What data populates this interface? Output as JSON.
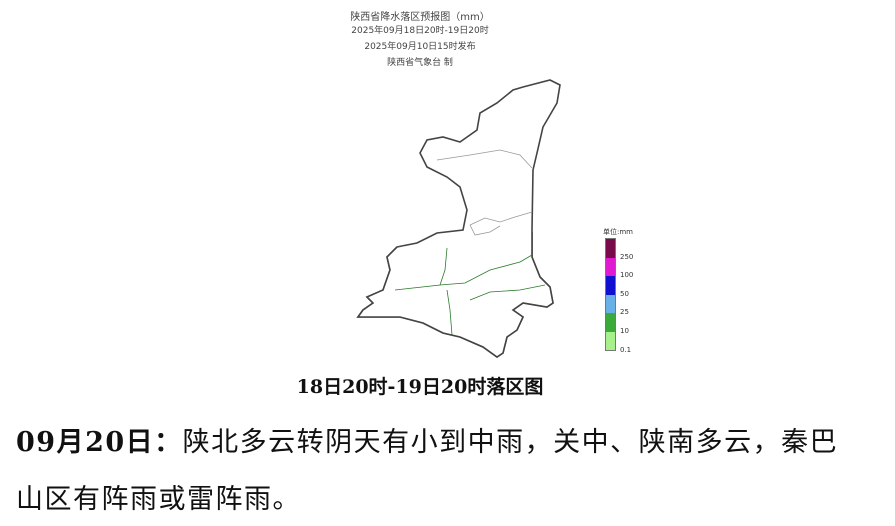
{
  "map_header": {
    "title": "陕西省降水落区预报图（mm）",
    "period": "2025年09月18日20时-19日20时",
    "issued": "2025年09月10日15时发布",
    "issuer": "陕西省气象台 制"
  },
  "legend": {
    "title": "单位:mm",
    "levels": [
      {
        "label": "250",
        "color": "#7a0b4a"
      },
      {
        "label": "100",
        "color": "#e01ad0"
      },
      {
        "label": "50",
        "color": "#1010d0"
      },
      {
        "label": "25",
        "color": "#6ab0e8"
      },
      {
        "label": "10",
        "color": "#3aaa3a"
      },
      {
        "label": "0.1",
        "color": "#a8f08a"
      }
    ]
  },
  "map_colors": {
    "rain_area": "#3faa3f",
    "no_rain": "#ffffff",
    "border": "#444444"
  },
  "caption": "18日20时-19日20时落区图",
  "forecast": {
    "date": "09月20日：",
    "line1": "陕北多云转阴天有小到中雨，关中、陕南多云，秦巴",
    "line2": "山区有阵雨或雷阵雨。"
  }
}
